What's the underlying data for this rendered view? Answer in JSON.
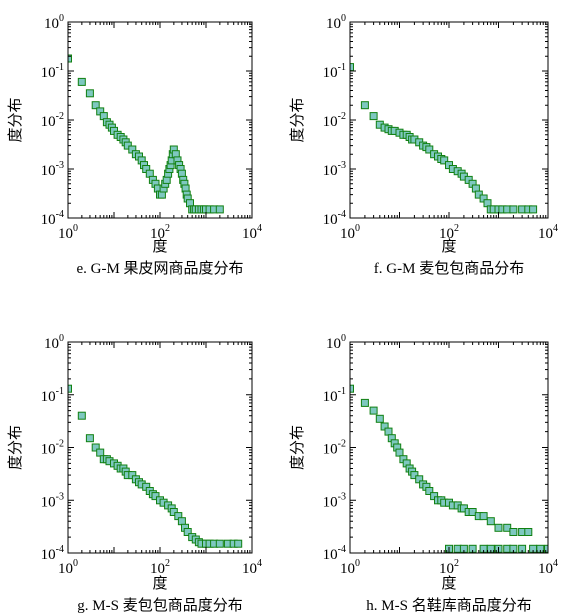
{
  "chart_data": [
    {
      "type": "scatter",
      "scale": "log-log",
      "xlabel": "度",
      "ylabel": "度分布",
      "caption": "e. G-M 果皮网商品度分布",
      "xlim": [
        1,
        10000
      ],
      "ylim": [
        0.0001,
        1
      ],
      "x_ticks": [
        {
          "base": "10",
          "exp": "0"
        },
        {
          "base": "10",
          "exp": "2"
        },
        {
          "base": "10",
          "exp": "4"
        }
      ],
      "y_ticks": [
        {
          "base": "10",
          "exp": "0"
        },
        {
          "base": "10",
          "exp": "-1"
        },
        {
          "base": "10",
          "exp": "-2"
        },
        {
          "base": "10",
          "exp": "-3"
        },
        {
          "base": "10",
          "exp": "-4"
        }
      ],
      "marker_fill": "#7ec8c0",
      "marker_edge": "#118011",
      "x": [
        1,
        2,
        3,
        4,
        5,
        6,
        7,
        8,
        9,
        10,
        12,
        14,
        16,
        18,
        20,
        25,
        30,
        35,
        40,
        45,
        50,
        60,
        70,
        80,
        90,
        100,
        110,
        120,
        130,
        140,
        150,
        160,
        170,
        180,
        190,
        200,
        220,
        240,
        260,
        280,
        300,
        320,
        340,
        360,
        380,
        400,
        450,
        500,
        550,
        600,
        700,
        800,
        900,
        1000,
        1200,
        1500,
        2000
      ],
      "y": [
        0.18,
        0.06,
        0.035,
        0.02,
        0.015,
        0.012,
        0.009,
        0.008,
        0.007,
        0.006,
        0.005,
        0.0045,
        0.004,
        0.0035,
        0.003,
        0.0025,
        0.002,
        0.0018,
        0.0015,
        0.0012,
        0.001,
        0.0008,
        0.0006,
        0.0005,
        0.0004,
        0.0003,
        0.0003,
        0.0004,
        0.0005,
        0.0006,
        0.0008,
        0.001,
        0.0012,
        0.0015,
        0.002,
        0.0025,
        0.002,
        0.0015,
        0.0012,
        0.001,
        0.0008,
        0.0006,
        0.0005,
        0.0004,
        0.0003,
        0.00025,
        0.0002,
        0.00015,
        0.00015,
        0.00015,
        0.00015,
        0.00015,
        0.00015,
        0.00015,
        0.00015,
        0.00015,
        0.00015
      ]
    },
    {
      "type": "scatter",
      "scale": "log-log",
      "xlabel": "度",
      "ylabel": "度分布",
      "caption": "f. G-M 麦包包商品分布",
      "xlim": [
        1,
        10000
      ],
      "ylim": [
        0.0001,
        1
      ],
      "x_ticks": [
        {
          "base": "10",
          "exp": "0"
        },
        {
          "base": "10",
          "exp": "2"
        },
        {
          "base": "10",
          "exp": "4"
        }
      ],
      "y_ticks": [
        {
          "base": "10",
          "exp": "0"
        },
        {
          "base": "10",
          "exp": "-1"
        },
        {
          "base": "10",
          "exp": "-2"
        },
        {
          "base": "10",
          "exp": "-3"
        },
        {
          "base": "10",
          "exp": "-4"
        }
      ],
      "marker_fill": "#7ec8c0",
      "marker_edge": "#118011",
      "x": [
        1,
        2,
        3,
        4,
        5,
        6,
        7,
        8,
        10,
        12,
        14,
        16,
        18,
        20,
        25,
        30,
        35,
        40,
        50,
        60,
        70,
        80,
        100,
        120,
        150,
        180,
        200,
        250,
        300,
        350,
        400,
        500,
        600,
        700,
        800,
        1000,
        1200,
        1500,
        2000,
        3000,
        4000,
        5000
      ],
      "y": [
        0.12,
        0.02,
        0.012,
        0.008,
        0.007,
        0.0065,
        0.006,
        0.006,
        0.0055,
        0.005,
        0.005,
        0.0045,
        0.004,
        0.004,
        0.0035,
        0.003,
        0.0028,
        0.0025,
        0.002,
        0.0018,
        0.0016,
        0.0015,
        0.0012,
        0.001,
        0.0009,
        0.0008,
        0.0007,
        0.0006,
        0.0005,
        0.0004,
        0.0003,
        0.00025,
        0.0002,
        0.00015,
        0.00015,
        0.00015,
        0.00015,
        0.00015,
        0.00015,
        0.00015,
        0.00015,
        0.00015
      ]
    },
    {
      "type": "scatter",
      "scale": "log-log",
      "xlabel": "度",
      "ylabel": "度分布",
      "caption": "g. M-S 麦包包商品度分布",
      "xlim": [
        1,
        10000
      ],
      "ylim": [
        0.0001,
        1
      ],
      "x_ticks": [
        {
          "base": "10",
          "exp": "0"
        },
        {
          "base": "10",
          "exp": "2"
        },
        {
          "base": "10",
          "exp": "4"
        }
      ],
      "y_ticks": [
        {
          "base": "10",
          "exp": "0"
        },
        {
          "base": "10",
          "exp": "-1"
        },
        {
          "base": "10",
          "exp": "-2"
        },
        {
          "base": "10",
          "exp": "-3"
        },
        {
          "base": "10",
          "exp": "-4"
        }
      ],
      "marker_fill": "#7ec8c0",
      "marker_edge": "#118011",
      "x": [
        1,
        2,
        3,
        4,
        5,
        6,
        7,
        8,
        10,
        12,
        14,
        16,
        18,
        20,
        25,
        30,
        35,
        40,
        50,
        60,
        70,
        80,
        100,
        120,
        150,
        180,
        200,
        250,
        300,
        350,
        400,
        500,
        600,
        700,
        800,
        1000,
        1200,
        1500,
        2000,
        3000,
        4000,
        5000
      ],
      "y": [
        0.13,
        0.04,
        0.015,
        0.01,
        0.008,
        0.006,
        0.006,
        0.0055,
        0.005,
        0.0045,
        0.004,
        0.004,
        0.0035,
        0.003,
        0.003,
        0.0025,
        0.0022,
        0.002,
        0.0018,
        0.0015,
        0.0013,
        0.0012,
        0.001,
        0.0009,
        0.0008,
        0.0007,
        0.0006,
        0.0005,
        0.0004,
        0.0003,
        0.00025,
        0.0002,
        0.00018,
        0.00016,
        0.00015,
        0.00015,
        0.00015,
        0.00015,
        0.00015,
        0.00015,
        0.00015,
        0.00015
      ]
    },
    {
      "type": "scatter",
      "scale": "log-log",
      "xlabel": "度",
      "ylabel": "度分布",
      "caption": "h. M-S 名鞋库商品度分布",
      "xlim": [
        1,
        10000
      ],
      "ylim": [
        0.0001,
        1
      ],
      "x_ticks": [
        {
          "base": "10",
          "exp": "0"
        },
        {
          "base": "10",
          "exp": "2"
        },
        {
          "base": "10",
          "exp": "4"
        }
      ],
      "y_ticks": [
        {
          "base": "10",
          "exp": "0"
        },
        {
          "base": "10",
          "exp": "-1"
        },
        {
          "base": "10",
          "exp": "-2"
        },
        {
          "base": "10",
          "exp": "-3"
        },
        {
          "base": "10",
          "exp": "-4"
        }
      ],
      "marker_fill": "#7ec8c0",
      "marker_edge": "#118011",
      "x": [
        1,
        2,
        3,
        4,
        5,
        6,
        7,
        8,
        9,
        10,
        12,
        14,
        16,
        18,
        20,
        25,
        30,
        35,
        40,
        50,
        60,
        70,
        80,
        100,
        120,
        150,
        180,
        200,
        250,
        300,
        400,
        500,
        700,
        1000,
        1500,
        2000,
        3000,
        4000,
        100,
        150,
        200,
        300,
        500,
        700,
        1000,
        1500,
        2000,
        3000,
        5000,
        7000,
        10000
      ],
      "y": [
        0.13,
        0.07,
        0.05,
        0.035,
        0.025,
        0.02,
        0.015,
        0.012,
        0.01,
        0.008,
        0.006,
        0.005,
        0.004,
        0.0035,
        0.003,
        0.0025,
        0.002,
        0.0018,
        0.0015,
        0.0012,
        0.001,
        0.001,
        0.0009,
        0.0009,
        0.0008,
        0.0008,
        0.0007,
        0.0007,
        0.0006,
        0.0006,
        0.0005,
        0.0005,
        0.0004,
        0.0003,
        0.0003,
        0.00025,
        0.00025,
        0.00025,
        0.00012,
        0.00012,
        0.00012,
        0.00012,
        0.00012,
        0.00012,
        0.00012,
        0.00012,
        0.00012,
        0.00012,
        0.00012,
        0.00012,
        0.00012
      ]
    }
  ]
}
